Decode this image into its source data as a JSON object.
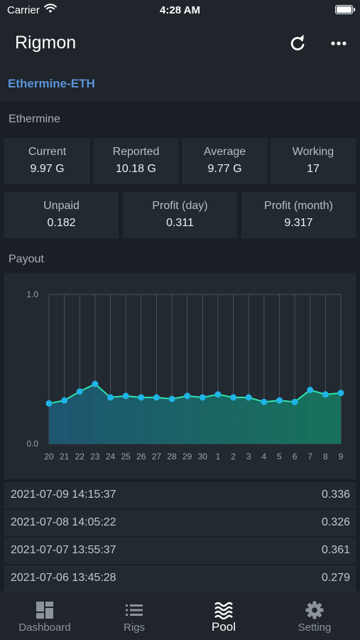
{
  "status_bar": {
    "carrier": "Carrier",
    "time": "4:28 AM"
  },
  "nav": {
    "title": "Rigmon",
    "refresh_icon": "refresh-icon",
    "more_icon": "more-icon"
  },
  "pool_tab": "Ethermine-ETH",
  "ethermine": {
    "title": "Ethermine",
    "hashrate": [
      {
        "label": "Current",
        "value": "9.97 G"
      },
      {
        "label": "Reported",
        "value": "10.18 G"
      },
      {
        "label": "Average",
        "value": "9.77 G"
      },
      {
        "label": "Working",
        "value": "17"
      }
    ],
    "earnings": [
      {
        "label": "Unpaid",
        "value": "0.182"
      },
      {
        "label": "Profit (day)",
        "value": "0.311"
      },
      {
        "label": "Profit (month)",
        "value": "9.317"
      }
    ]
  },
  "payout": {
    "title": "Payout",
    "rows": [
      {
        "date": "2021-07-09 14:15:37",
        "amount": "0.336"
      },
      {
        "date": "2021-07-08 14:05:22",
        "amount": "0.326"
      },
      {
        "date": "2021-07-07 13:55:37",
        "amount": "0.361"
      },
      {
        "date": "2021-07-06 13:45:28",
        "amount": "0.279"
      }
    ]
  },
  "chart_data": {
    "type": "area",
    "categories": [
      "20",
      "21",
      "22",
      "23",
      "24",
      "25",
      "26",
      "27",
      "28",
      "29",
      "30",
      "1",
      "2",
      "3",
      "4",
      "5",
      "6",
      "7",
      "8",
      "9"
    ],
    "series": [
      {
        "values": [
          0.27,
          0.29,
          0.35,
          0.4,
          0.31,
          0.32,
          0.31,
          0.31,
          0.3,
          0.32,
          0.31,
          0.33,
          0.31,
          0.31,
          0.28,
          0.29,
          0.28,
          0.36,
          0.33,
          0.34
        ]
      }
    ],
    "ylim": [
      0,
      1
    ],
    "yticks": [
      "0.0",
      "1.0"
    ],
    "grid": true,
    "colors": {
      "line": "#2ee6b0",
      "point": "#1eb4e6",
      "fill_top": "#1d5a78",
      "fill_bottom": "#167a5e",
      "grid": "#4a525b"
    }
  },
  "tabs": [
    {
      "label": "Dashboard",
      "icon": "dashboard-icon"
    },
    {
      "label": "Rigs",
      "icon": "list-icon"
    },
    {
      "label": "Pool",
      "icon": "waves-icon",
      "active": true
    },
    {
      "label": "Setting",
      "icon": "gear-icon"
    }
  ]
}
